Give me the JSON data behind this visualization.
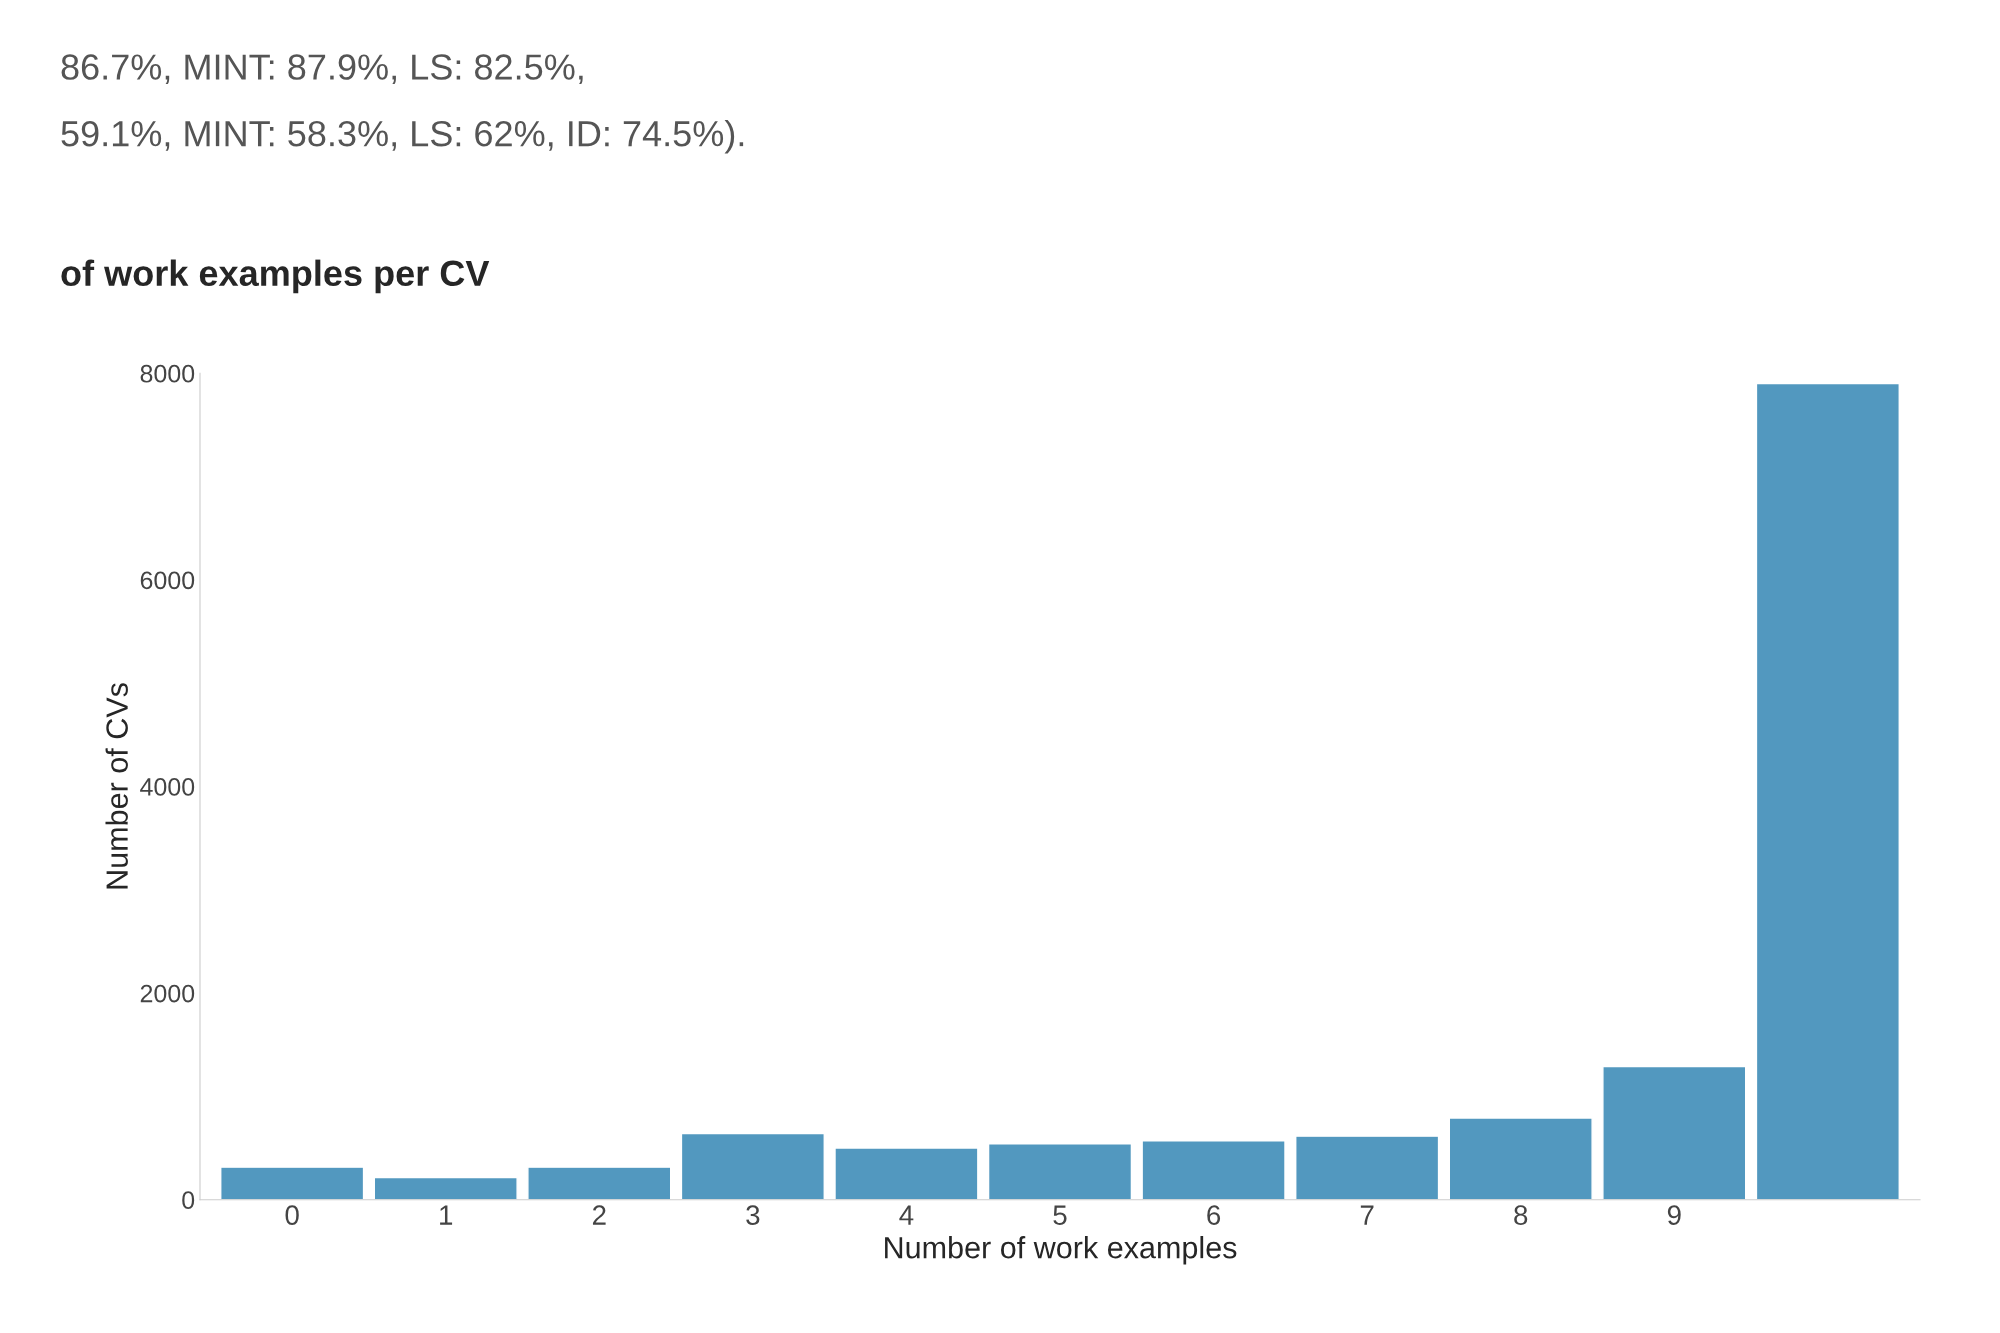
{
  "chart_data": {
    "type": "bar",
    "title": "of work examples per CV",
    "xlabel": "Number of work examples",
    "ylabel": "Number of CVs",
    "annotations": [
      "86.7%, MINT: 87.9%, LS: 82.5%,",
      "59.1%, MINT: 58.3%, LS: 62%, ID: 74.5%)."
    ],
    "categories": [
      "0",
      "1",
      "2",
      "3",
      "4",
      "5",
      "6",
      "7",
      "8",
      "9",
      null
    ],
    "values": [
      315,
      215,
      315,
      640,
      500,
      540,
      570,
      615,
      790,
      1290,
      7900
    ],
    "color": "#5298bf",
    "ylim": [
      0,
      8000
    ],
    "yticks": [
      0,
      2000,
      4000,
      6000,
      8000
    ],
    "grid": false,
    "legend": false
  }
}
